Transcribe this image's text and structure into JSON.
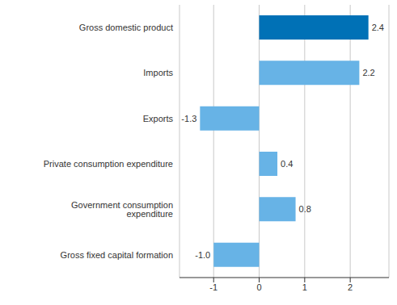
{
  "chart_data": {
    "type": "bar",
    "orientation": "horizontal",
    "categories": [
      "Gross domestic product",
      "Imports",
      "Exports",
      "Private consumption expenditure",
      "Government consumption expenditure",
      "Gross fixed capital formation"
    ],
    "values": [
      2.4,
      2.2,
      -1.3,
      0.4,
      0.8,
      -1.0
    ],
    "value_labels": [
      "2.4",
      "2.2",
      "-1.3",
      "0.4",
      "0.8",
      "-1.0"
    ],
    "colors": [
      "#0071b6",
      "#67b3e6",
      "#67b3e6",
      "#67b3e6",
      "#67b3e6",
      "#67b3e6"
    ],
    "xlim": [
      -1.75,
      2.85
    ],
    "xticks": [
      -1,
      0,
      1,
      2
    ],
    "grid": true,
    "data_labels": true
  }
}
